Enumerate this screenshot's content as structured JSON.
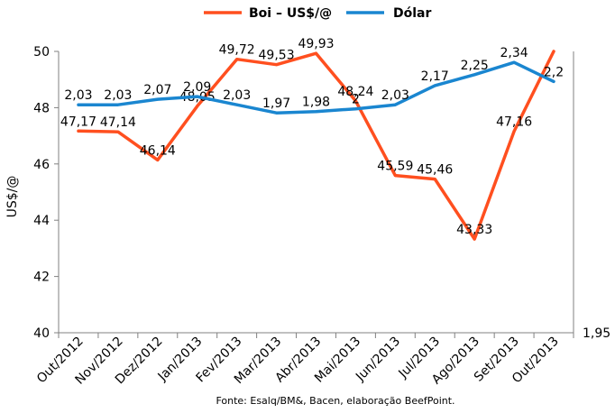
{
  "chart_data": {
    "type": "line",
    "categories": [
      "Out/2012",
      "Nov/2012",
      "Dez/2012",
      "Jan/2013",
      "Fev/2013",
      "Mar/2013",
      "Abr/2013",
      "Mai/2013",
      "Jun/2013",
      "Jul/2013",
      "Ago/2013",
      "Set/2013",
      "Out/2013"
    ],
    "ylabel": "US$/@",
    "ylim": [
      40,
      50
    ],
    "yticks": [
      "40",
      "42",
      "44",
      "46",
      "48",
      "50"
    ],
    "y2ticks": [
      "1,95"
    ],
    "grid": false,
    "legend_position": "top",
    "series": [
      {
        "name": "Boi – US$/@",
        "color": "#ff4f1f",
        "axis": "left",
        "values": [
          47.17,
          47.14,
          46.14,
          48.05,
          49.72,
          49.53,
          49.93,
          48.24,
          45.59,
          45.46,
          43.33,
          47.16,
          50.0
        ],
        "labels": [
          "47,17",
          "47,14",
          "46,14",
          "48,05",
          "49,72",
          "49,53",
          "49,93",
          "48,24",
          "45,59",
          "45,46",
          "43,33",
          "47,16",
          ""
        ]
      },
      {
        "name": "Dólar",
        "color": "#1a86d0",
        "axis": "right",
        "values": [
          2.03,
          2.03,
          2.07,
          2.09,
          2.03,
          1.97,
          1.98,
          2.0,
          2.03,
          2.17,
          2.25,
          2.34,
          2.2
        ],
        "labels": [
          "2,03",
          "2,03",
          "2,07",
          "2,09",
          "2,03",
          "1,97",
          "1,98",
          "2",
          "2,03",
          "2,17",
          "2,25",
          "2,34",
          "2,2"
        ]
      }
    ],
    "source": "Fonte: Esalq/BM&, Bacen, elaboração BeefPoint."
  }
}
